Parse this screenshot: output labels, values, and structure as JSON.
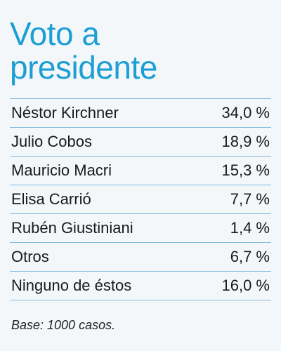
{
  "header": {
    "title_lines": [
      "Voto a",
      "presidente"
    ]
  },
  "table": {
    "rows": [
      [
        "Néstor Kirchner",
        "34,0 %"
      ],
      [
        "Julio Cobos",
        "18,9 %"
      ],
      [
        "Mauricio Macri",
        "15,3 %"
      ],
      [
        "Elisa Carrió",
        "7,7 %"
      ],
      [
        "Rubén Giustiniani",
        "1,4 %"
      ],
      [
        "Otros",
        "6,7 %"
      ],
      [
        "Ninguno de éstos",
        "16,0 %"
      ]
    ]
  },
  "footer": {
    "note": "Base: 1000 casos."
  }
}
